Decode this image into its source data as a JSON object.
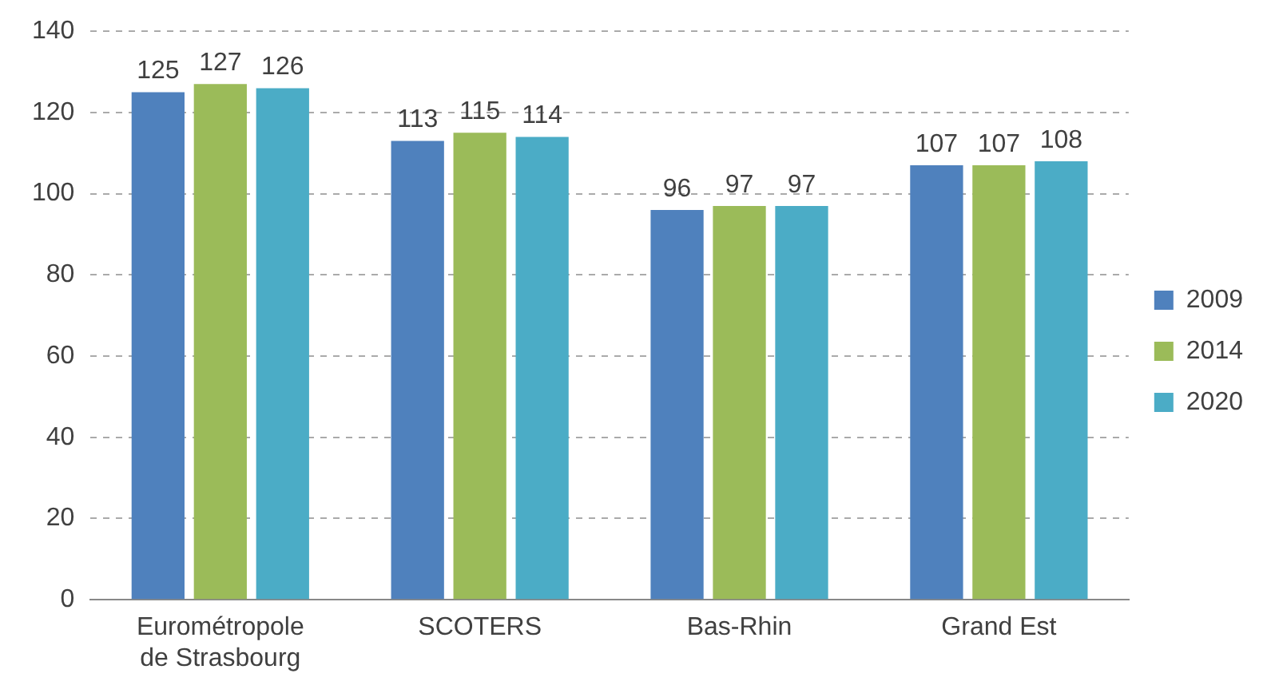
{
  "chart_data": {
    "type": "bar",
    "categories": [
      "Eurométropole\nde Strasbourg",
      "SCOTERS",
      "Bas-Rhin",
      "Grand Est"
    ],
    "series": [
      {
        "name": "2009",
        "color": "#4f81bd",
        "values": [
          125,
          113,
          96,
          107
        ]
      },
      {
        "name": "2014",
        "color": "#9bbb59",
        "values": [
          127,
          115,
          97,
          107
        ]
      },
      {
        "name": "2020",
        "color": "#4bacc6",
        "values": [
          126,
          114,
          97,
          108
        ]
      }
    ],
    "ylim": [
      0,
      140
    ],
    "yticks": [
      0,
      20,
      40,
      60,
      80,
      100,
      120,
      140
    ],
    "grid": "y",
    "legend": "right",
    "data_labels": true
  }
}
